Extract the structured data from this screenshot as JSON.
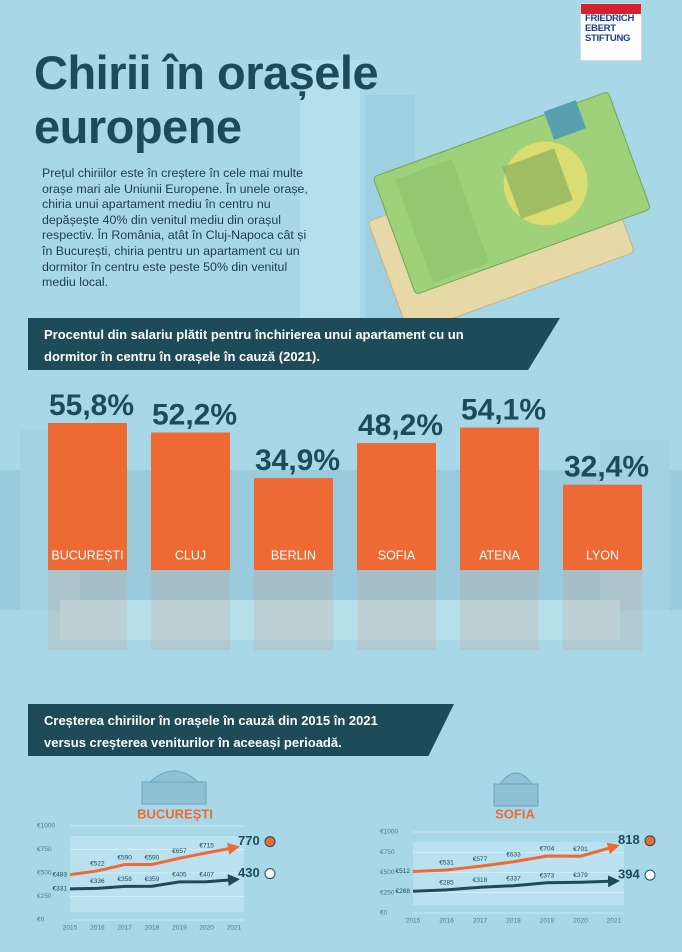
{
  "header": {
    "title": "Chirii în orașele europene",
    "intro": "Prețul chiriilor este în creștere în cele mai multe orașe mari ale Uniunii Europene. În unele orașe, chiria unui apartament mediu în centru nu depășește 40% din venitul mediu din orașul respectiv. În România, atât în Cluj-Napoca cât și în București, chiria pentru un apartament cu un dormitor în centru este peste 50% din venitul mediu local.",
    "logo": [
      "FRIEDRICH",
      "EBERT",
      "STIFTUNG"
    ]
  },
  "comparison_heading": "Creșterea chiriilor în orașele în cauză din 2015 în 2021 versus creșterea veniturilor în aceeași perioadă.",
  "chart_data": [
    {
      "type": "bar",
      "title": "Procentul din salariu plătit pentru închirierea unui apartament cu un dormitor în centru în orașele în cauză (2021).",
      "categories": [
        "BUCUREȘTI",
        "CLUJ",
        "BERLIN",
        "SOFIA",
        "ATENA",
        "LYON"
      ],
      "values": [
        55.8,
        52.2,
        34.9,
        48.2,
        54.1,
        32.4
      ],
      "value_labels": [
        "55,8%",
        "52,2%",
        "34,9%",
        "48,2%",
        "54,1%",
        "32,4%"
      ],
      "color": "#ee6a35"
    },
    {
      "type": "line",
      "title": "BUCUREȘTI",
      "x": [
        2015,
        2016,
        2017,
        2018,
        2019,
        2020,
        2021
      ],
      "xlim": [
        2015,
        2021
      ],
      "xticks": [
        2015,
        2016,
        2017,
        2018,
        2019,
        2020,
        2021
      ],
      "ylim": [
        0,
        1000
      ],
      "yticks": [
        {
          "value": 0,
          "label": "€0"
        },
        {
          "value": 250,
          "label": "€250"
        },
        {
          "value": 500,
          "label": "€500"
        },
        {
          "value": 750,
          "label": "€750"
        },
        {
          "value": 1000,
          "label": "€1000"
        }
      ],
      "grid": true,
      "series": [
        {
          "color": "#ee6a35",
          "values": [
            483,
            522,
            590,
            590,
            657,
            715,
            770
          ],
          "value_labels": [
            "€483",
            "€522",
            "€590",
            "€590",
            "€657",
            "€715",
            "770"
          ]
        },
        {
          "color": "#1d4b5a",
          "values": [
            331,
            336,
            358,
            359,
            405,
            407,
            430
          ],
          "value_labels": [
            "€331",
            "€336",
            "€358",
            "€359",
            "€405",
            "€407",
            "430"
          ]
        }
      ]
    },
    {
      "type": "line",
      "title": "SOFIA",
      "x": [
        2015,
        2016,
        2017,
        2018,
        2019,
        2020,
        2021
      ],
      "xlim": [
        2015,
        2021
      ],
      "xticks": [
        2015,
        2016,
        2017,
        2018,
        2019,
        2020,
        2021
      ],
      "ylim": [
        0,
        1000
      ],
      "yticks": [
        {
          "value": 0,
          "label": "€0"
        },
        {
          "value": 250,
          "label": "€250"
        },
        {
          "value": 500,
          "label": "€500"
        },
        {
          "value": 750,
          "label": "€750"
        },
        {
          "value": 1000,
          "label": "€1000"
        }
      ],
      "grid": true,
      "series": [
        {
          "color": "#ee6a35",
          "values": [
            512,
            531,
            577,
            633,
            704,
            701,
            818
          ],
          "value_labels": [
            "€512",
            "€531",
            "€577",
            "€633",
            "€704",
            "€701",
            "818"
          ]
        },
        {
          "color": "#1d4b5a",
          "values": [
            268,
            285,
            318,
            337,
            373,
            379,
            394
          ],
          "value_labels": [
            "€268",
            "€285",
            "€318",
            "€337",
            "€373",
            "€379",
            "394"
          ]
        }
      ]
    }
  ]
}
